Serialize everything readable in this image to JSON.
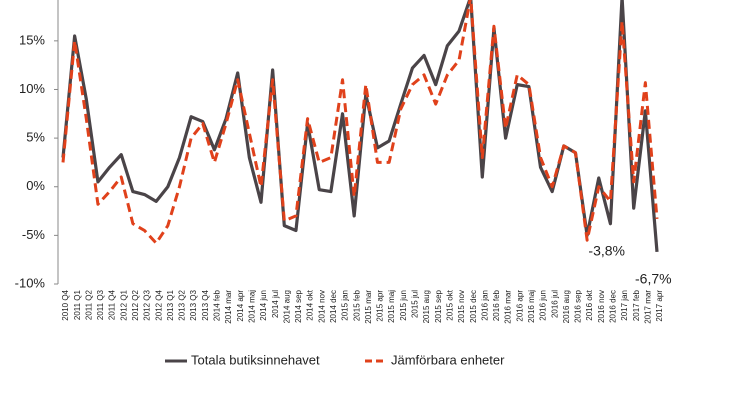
{
  "chart_data": {
    "type": "line",
    "categories": [
      "2010 Q4",
      "2011 Q1",
      "2011 Q2",
      "2011 Q3",
      "2011 Q4",
      "2012 Q1",
      "2012 Q2",
      "2012 Q3",
      "2012 Q4",
      "2013 Q1",
      "2013 Q2",
      "2013 Q3",
      "2013 Q4",
      "2014 feb",
      "2014 mar",
      "2014 apr",
      "2014 maj",
      "2014 jun",
      "2014 jul",
      "2014 aug",
      "2014 sep",
      "2014 okt",
      "2014 nov",
      "2014 dec",
      "2015 jan",
      "2015 feb",
      "2015 mar",
      "2015 apr",
      "2015 maj",
      "2015 jun",
      "2015 jul",
      "2015 aug",
      "2015 sep",
      "2015 okt",
      "2015 nov",
      "2015 dec",
      "2016 jan",
      "2016 feb",
      "2016 mar",
      "2016 apr",
      "2016 maj",
      "2016 jun",
      "2016 jul",
      "2016 aug",
      "2016 sep",
      "2016 okt",
      "2016 nov",
      "2016 dec",
      "2017 jan",
      "2017 feb",
      "2017 mar",
      "2017 apr"
    ],
    "series": [
      {
        "name": "Totala butiksinnehavet",
        "color": "#4a4448",
        "dashed": false,
        "values": [
          3,
          15.5,
          9,
          0.5,
          2,
          3.3,
          -0.5,
          -0.8,
          -1.5,
          0,
          3,
          7.2,
          6.7,
          3.8,
          7,
          11.7,
          3,
          -1.6,
          12,
          -4,
          -4.5,
          6.5,
          -0.3,
          -0.5,
          7.5,
          -3,
          9.5,
          4,
          4.7,
          8.5,
          12.2,
          13.5,
          10.5,
          14.5,
          16,
          19.5,
          1,
          16.3,
          5,
          10.5,
          10.3,
          2,
          -0.5,
          4.2,
          3.5,
          -5,
          0.9,
          -3.8,
          19.5,
          -2.2,
          7.8,
          -6.7
        ],
        "value_labels": [
          null,
          null,
          null,
          null,
          null,
          null,
          null,
          null,
          null,
          null,
          null,
          null,
          null,
          null,
          null,
          null,
          null,
          null,
          null,
          null,
          null,
          null,
          null,
          null,
          null,
          null,
          null,
          null,
          null,
          null,
          null,
          null,
          null,
          null,
          null,
          null,
          null,
          null,
          null,
          null,
          null,
          null,
          null,
          null,
          null,
          null,
          null,
          "-3,8%",
          null,
          null,
          null,
          "-6,7%"
        ]
      },
      {
        "name": "Jämförbara enheter",
        "color": "#e0411b",
        "dashed": true,
        "values": [
          2.5,
          15,
          7,
          -1.8,
          -0.5,
          1,
          -3.8,
          -4.5,
          -5.8,
          -4,
          0,
          5,
          6.5,
          2.5,
          6.5,
          11,
          5.5,
          0,
          11,
          -3.5,
          -3,
          7,
          2.5,
          3,
          11,
          -1,
          10.5,
          2.5,
          2.5,
          8,
          10.5,
          11.5,
          8.5,
          11.5,
          13,
          19.5,
          3,
          16.5,
          6,
          11.5,
          10.5,
          3,
          0,
          4.2,
          3.5,
          -5.5,
          0,
          -1.5,
          17,
          0.5,
          10.7,
          -3.3
        ]
      }
    ],
    "ylim": [
      -10,
      19.2
    ],
    "yticks": [
      {
        "value": -10,
        "label": "-10%"
      },
      {
        "value": -5,
        "label": "-5%"
      },
      {
        "value": 0,
        "label": "0%"
      },
      {
        "value": 5,
        "label": "5%"
      },
      {
        "value": 10,
        "label": "10%"
      },
      {
        "value": 15,
        "label": "15%"
      }
    ],
    "grid": false,
    "legend": "bottom"
  }
}
